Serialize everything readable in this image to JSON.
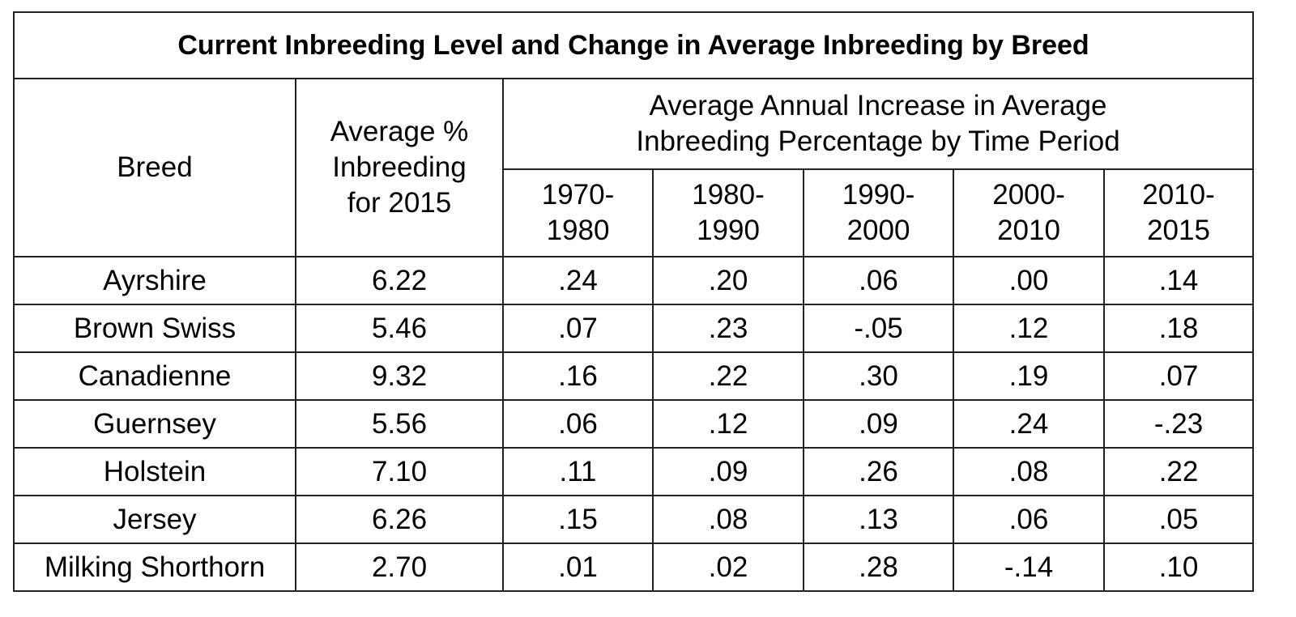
{
  "table": {
    "title": "Current Inbreeding Level and Change in Average Inbreeding by Breed",
    "header": {
      "breed": "Breed",
      "avg_line1": "Average %",
      "avg_line2": "Inbreeding",
      "avg_line3": "for 2015",
      "group_line1": "Average Annual Increase in Average",
      "group_line2": "Inbreeding Percentage by Time Period",
      "periods": [
        {
          "start": "1970-",
          "end": "1980"
        },
        {
          "start": "1980-",
          "end": "1990"
        },
        {
          "start": "1990-",
          "end": "2000"
        },
        {
          "start": "2000-",
          "end": "2010"
        },
        {
          "start": "2010-",
          "end": "2015"
        }
      ]
    },
    "rows": [
      {
        "breed": "Ayrshire",
        "avg": "6.22",
        "values": [
          ".24",
          ".20",
          ".06",
          ".00",
          ".14"
        ]
      },
      {
        "breed": "Brown Swiss",
        "avg": "5.46",
        "values": [
          ".07",
          ".23",
          "-.05",
          ".12",
          ".18"
        ]
      },
      {
        "breed": "Canadienne",
        "avg": "9.32",
        "values": [
          ".16",
          ".22",
          ".30",
          ".19",
          ".07"
        ]
      },
      {
        "breed": "Guernsey",
        "avg": "5.56",
        "values": [
          ".06",
          ".12",
          ".09",
          ".24",
          "-.23"
        ]
      },
      {
        "breed": "Holstein",
        "avg": "7.10",
        "values": [
          ".11",
          ".09",
          ".26",
          ".08",
          ".22"
        ]
      },
      {
        "breed": "Jersey",
        "avg": "6.26",
        "values": [
          ".15",
          ".08",
          ".13",
          ".06",
          ".05"
        ]
      },
      {
        "breed": "Milking Shorthorn",
        "avg": "2.70",
        "values": [
          ".01",
          ".02",
          ".28",
          "-.14",
          ".10"
        ]
      }
    ]
  }
}
